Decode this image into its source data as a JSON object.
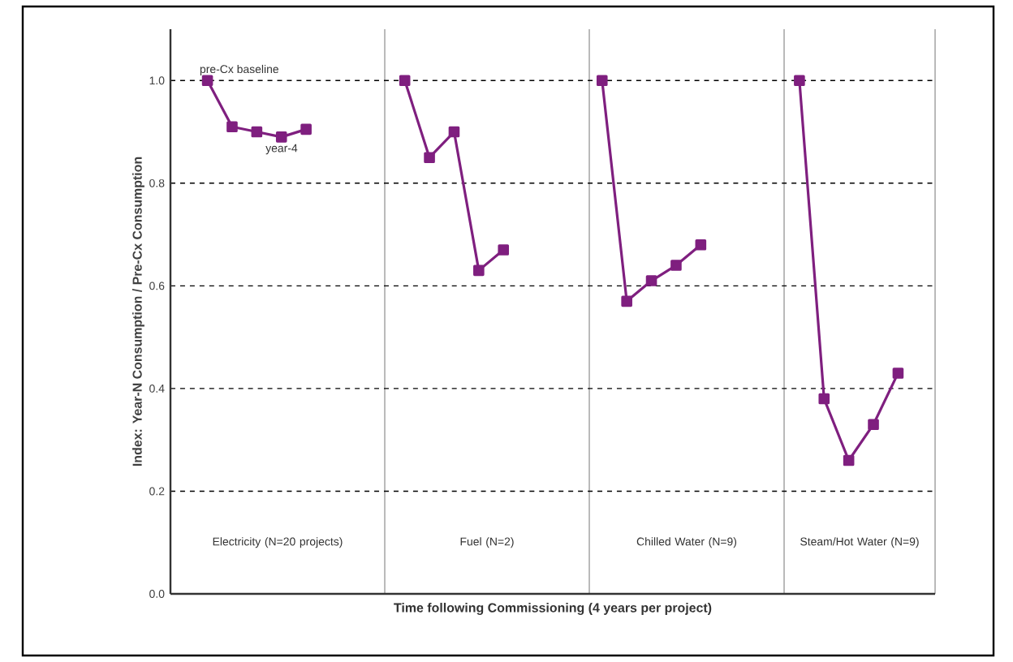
{
  "chart_data": {
    "type": "line",
    "ylabel": "Index:    Year-N Consumption / Pre-Cx Consumption",
    "xlabel": "Time following Commissioning (4 years per project)",
    "categories": [
      null,
      null,
      null,
      null,
      null,
      null,
      null,
      null,
      null,
      null,
      null,
      null,
      null,
      null,
      null,
      null,
      null,
      null,
      null,
      null,
      null,
      null,
      null,
      null,
      null,
      null,
      null,
      null,
      null,
      null,
      null
    ],
    "series": [
      {
        "color": "#7f1f7f",
        "values": [
          null,
          1.0,
          0.91,
          0.9,
          0.89,
          0.905,
          null,
          null,
          null,
          null,
          null,
          null,
          null,
          null,
          null,
          null,
          null,
          null,
          null,
          null,
          null,
          null,
          null,
          null,
          null,
          null,
          null,
          null,
          null,
          null,
          null
        ]
      },
      {
        "color": "#7f1f7f",
        "values": [
          null,
          null,
          null,
          null,
          null,
          null,
          null,
          null,
          null,
          1.0,
          0.85,
          0.9,
          0.63,
          0.67,
          null,
          null,
          null,
          null,
          null,
          null,
          null,
          null,
          null,
          null,
          null,
          null,
          null,
          null,
          null,
          null,
          null
        ]
      },
      {
        "color": "#7f1f7f",
        "values": [
          null,
          null,
          null,
          null,
          null,
          null,
          null,
          null,
          null,
          null,
          null,
          null,
          null,
          null,
          null,
          null,
          null,
          1.0,
          0.57,
          0.61,
          0.64,
          0.68,
          null,
          null,
          null,
          null,
          null,
          null,
          null,
          null,
          null
        ]
      },
      {
        "color": "#7f1f7f",
        "values": [
          null,
          null,
          null,
          null,
          null,
          null,
          null,
          null,
          null,
          null,
          null,
          null,
          null,
          null,
          null,
          null,
          null,
          null,
          null,
          null,
          null,
          null,
          null,
          null,
          null,
          1.0,
          0.38,
          0.26,
          0.33,
          0.43,
          null
        ]
      }
    ],
    "marker": "square",
    "line_style": "solid",
    "grid": "y",
    "tick_labels": "y",
    "ylim": [
      0,
      1.1
    ],
    "yticks": [
      {
        "value": 0,
        "label": "0.0"
      },
      {
        "value": 0.2,
        "label": "0.2"
      },
      {
        "value": 0.4,
        "label": "0.4"
      },
      {
        "value": 0.6,
        "label": "0.6"
      },
      {
        "value": 0.8,
        "label": "0.8"
      },
      {
        "value": 1.0,
        "label": "1.0"
      }
    ],
    "annotations": [
      "pre-Cx baseline",
      "year-4",
      "Electricity (N=20 projects)",
      "Fuel (N=2)",
      "Chilled Water (N=9)",
      "Steam/Hot Water (N=9)"
    ]
  }
}
